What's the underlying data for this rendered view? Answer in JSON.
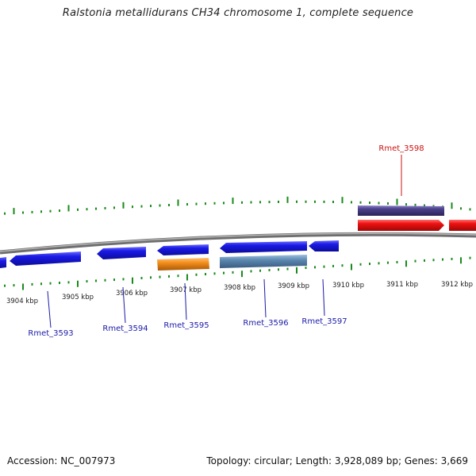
{
  "title": "Ralstonia metallidurans CH34 chromosome 1, complete sequence",
  "footer": {
    "accession": "Accession: NC_007973",
    "summary": "Topology: circular; Length: 3,928,089 bp; Genes: 3,669"
  },
  "colors": {
    "backbone": "#8c8c8c",
    "tick": "#1a8a1a",
    "forward_gene": "#ee1111",
    "reverse_gene": "#1a1ae6",
    "feature_purple": "#4a3f8a",
    "feature_orange": "#f28c1a",
    "feature_steel": "#5b87b0",
    "label_blue": "#1a1aa8",
    "label_red": "#cc1111"
  },
  "axis": {
    "unit": "kbp",
    "ticks": [
      {
        "label": "3904 kbp",
        "kbp": 3904
      },
      {
        "label": "3905 kbp",
        "kbp": 3905
      },
      {
        "label": "3906 kbp",
        "kbp": 3906
      },
      {
        "label": "3907 kbp",
        "kbp": 3907
      },
      {
        "label": "3908 kbp",
        "kbp": 3908
      },
      {
        "label": "3909 kbp",
        "kbp": 3909
      },
      {
        "label": "3910 kbp",
        "kbp": 3910
      },
      {
        "label": "3911 kbp",
        "kbp": 3911
      },
      {
        "label": "3912 kbp",
        "kbp": 3912
      }
    ]
  },
  "gene_labels": [
    {
      "name": "Rmet_3593",
      "strand": "reverse"
    },
    {
      "name": "Rmet_3594",
      "strand": "reverse"
    },
    {
      "name": "Rmet_3595",
      "strand": "reverse"
    },
    {
      "name": "Rmet_3596",
      "strand": "reverse"
    },
    {
      "name": "Rmet_3597",
      "strand": "reverse"
    },
    {
      "name": "Rmet_3598",
      "strand": "forward"
    }
  ]
}
